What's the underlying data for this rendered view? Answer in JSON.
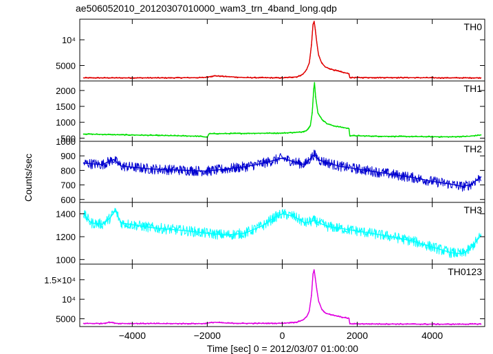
{
  "chart_data": {
    "type": "line",
    "title": "ae506052010_20120307010000_wam3_trn_4band_long.qdp",
    "xlabel": "Time [sec] 0 = 2012/03/07 01:00:00",
    "ylabel": "Counts/sec",
    "xlim": [
      -5400,
      5400
    ],
    "x_ticks": [
      -4000,
      -2000,
      0,
      2000,
      4000
    ],
    "x_tick_labels": [
      "−4000",
      "−2000",
      "0",
      "2000",
      "4000"
    ],
    "panels": [
      {
        "name": "TH0",
        "color": "#e00000",
        "ylim": [
          2000,
          14000
        ],
        "y_ticks": [
          5000,
          10000
        ],
        "y_tick_labels": [
          "5000",
          "10⁴"
        ],
        "series": [
          [
            -5300,
            2600
          ],
          [
            -3000,
            2600
          ],
          [
            -2100,
            2650
          ],
          [
            -1800,
            3000
          ],
          [
            -1500,
            2850
          ],
          [
            -1000,
            2650
          ],
          [
            0,
            2600
          ],
          [
            400,
            2800
          ],
          [
            550,
            3300
          ],
          [
            650,
            4200
          ],
          [
            720,
            5500
          ],
          [
            780,
            9000
          ],
          [
            820,
            13000
          ],
          [
            850,
            13600
          ],
          [
            880,
            12000
          ],
          [
            920,
            9500
          ],
          [
            970,
            7000
          ],
          [
            1050,
            5500
          ],
          [
            1150,
            4700
          ],
          [
            1300,
            4300
          ],
          [
            1450,
            4000
          ],
          [
            1600,
            3700
          ],
          [
            1780,
            3400
          ],
          [
            1800,
            2650
          ],
          [
            3000,
            2650
          ],
          [
            4500,
            2600
          ],
          [
            5300,
            2600
          ]
        ]
      },
      {
        "name": "TH1",
        "color": "#00e000",
        "ylim": [
          400,
          2300
        ],
        "y_ticks": [
          500,
          1000,
          1500,
          2000
        ],
        "y_tick_labels": [
          "500",
          "1000",
          "1500",
          "2000"
        ],
        "series": [
          [
            -5300,
            630
          ],
          [
            -4500,
            610
          ],
          [
            -3000,
            580
          ],
          [
            -2200,
            560
          ],
          [
            -2000,
            530
          ],
          [
            -1950,
            640
          ],
          [
            -1000,
            650
          ],
          [
            0,
            660
          ],
          [
            500,
            690
          ],
          [
            650,
            740
          ],
          [
            750,
            900
          ],
          [
            800,
            1300
          ],
          [
            840,
            2050
          ],
          [
            860,
            2250
          ],
          [
            890,
            1800
          ],
          [
            950,
            1300
          ],
          [
            1050,
            1100
          ],
          [
            1200,
            950
          ],
          [
            1400,
            880
          ],
          [
            1600,
            840
          ],
          [
            1780,
            800
          ],
          [
            1800,
            580
          ],
          [
            2500,
            560
          ],
          [
            3500,
            550
          ],
          [
            4500,
            540
          ],
          [
            5000,
            560
          ],
          [
            5300,
            600
          ]
        ]
      },
      {
        "name": "TH2",
        "color": "#0000d0",
        "ylim": [
          580,
          1000
        ],
        "y_ticks": [
          600,
          700,
          800,
          900,
          1000
        ],
        "y_tick_labels": [
          "600",
          "700",
          "800",
          "900",
          "1000"
        ],
        "series": [
          [
            -5300,
            850
          ],
          [
            -4800,
            840
          ],
          [
            -4500,
            875
          ],
          [
            -4300,
            830
          ],
          [
            -3500,
            810
          ],
          [
            -2500,
            800
          ],
          [
            -2000,
            795
          ],
          [
            -1500,
            810
          ],
          [
            -1000,
            825
          ],
          [
            -500,
            850
          ],
          [
            0,
            885
          ],
          [
            300,
            860
          ],
          [
            600,
            840
          ],
          [
            850,
            910
          ],
          [
            1000,
            870
          ],
          [
            1500,
            830
          ],
          [
            2000,
            810
          ],
          [
            2500,
            790
          ],
          [
            3000,
            770
          ],
          [
            3500,
            750
          ],
          [
            4000,
            725
          ],
          [
            4500,
            705
          ],
          [
            4800,
            690
          ],
          [
            5000,
            700
          ],
          [
            5300,
            755
          ]
        ]
      },
      {
        "name": "TH3",
        "color": "#00ffff",
        "ylim": [
          960,
          1500
        ],
        "y_ticks": [
          1000,
          1200,
          1400
        ],
        "y_tick_labels": [
          "1000",
          "1200",
          "1400"
        ],
        "series": [
          [
            -5300,
            1400
          ],
          [
            -5100,
            1320
          ],
          [
            -4800,
            1310
          ],
          [
            -4600,
            1360
          ],
          [
            -4450,
            1430
          ],
          [
            -4300,
            1320
          ],
          [
            -3500,
            1280
          ],
          [
            -2500,
            1250
          ],
          [
            -2000,
            1230
          ],
          [
            -1500,
            1215
          ],
          [
            -1000,
            1230
          ],
          [
            -500,
            1300
          ],
          [
            -200,
            1370
          ],
          [
            0,
            1400
          ],
          [
            300,
            1380
          ],
          [
            600,
            1320
          ],
          [
            850,
            1340
          ],
          [
            1200,
            1290
          ],
          [
            2000,
            1250
          ],
          [
            3000,
            1195
          ],
          [
            3500,
            1160
          ],
          [
            4000,
            1110
          ],
          [
            4500,
            1060
          ],
          [
            4800,
            1050
          ],
          [
            5000,
            1090
          ],
          [
            5300,
            1210
          ]
        ]
      },
      {
        "name": "TH0123",
        "color": "#e000e0",
        "ylim": [
          3000,
          19000
        ],
        "y_ticks": [
          5000,
          10000,
          15000
        ],
        "y_tick_labels": [
          "5000",
          "10⁴",
          "1.5×10⁴"
        ],
        "series": [
          [
            -5300,
            3800
          ],
          [
            -4800,
            3780
          ],
          [
            -4600,
            4100
          ],
          [
            -4400,
            3800
          ],
          [
            -3000,
            3750
          ],
          [
            -2100,
            3750
          ],
          [
            -1800,
            4100
          ],
          [
            -1500,
            3900
          ],
          [
            -1000,
            3800
          ],
          [
            0,
            3850
          ],
          [
            400,
            4150
          ],
          [
            550,
            4700
          ],
          [
            650,
            5500
          ],
          [
            720,
            7000
          ],
          [
            780,
            11000
          ],
          [
            820,
            16500
          ],
          [
            850,
            17500
          ],
          [
            880,
            15500
          ],
          [
            920,
            12500
          ],
          [
            970,
            9500
          ],
          [
            1050,
            7500
          ],
          [
            1150,
            6500
          ],
          [
            1300,
            6000
          ],
          [
            1450,
            5700
          ],
          [
            1600,
            5400
          ],
          [
            1780,
            5100
          ],
          [
            1800,
            3700
          ],
          [
            3000,
            3650
          ],
          [
            4500,
            3600
          ],
          [
            5300,
            3650
          ]
        ]
      }
    ]
  }
}
